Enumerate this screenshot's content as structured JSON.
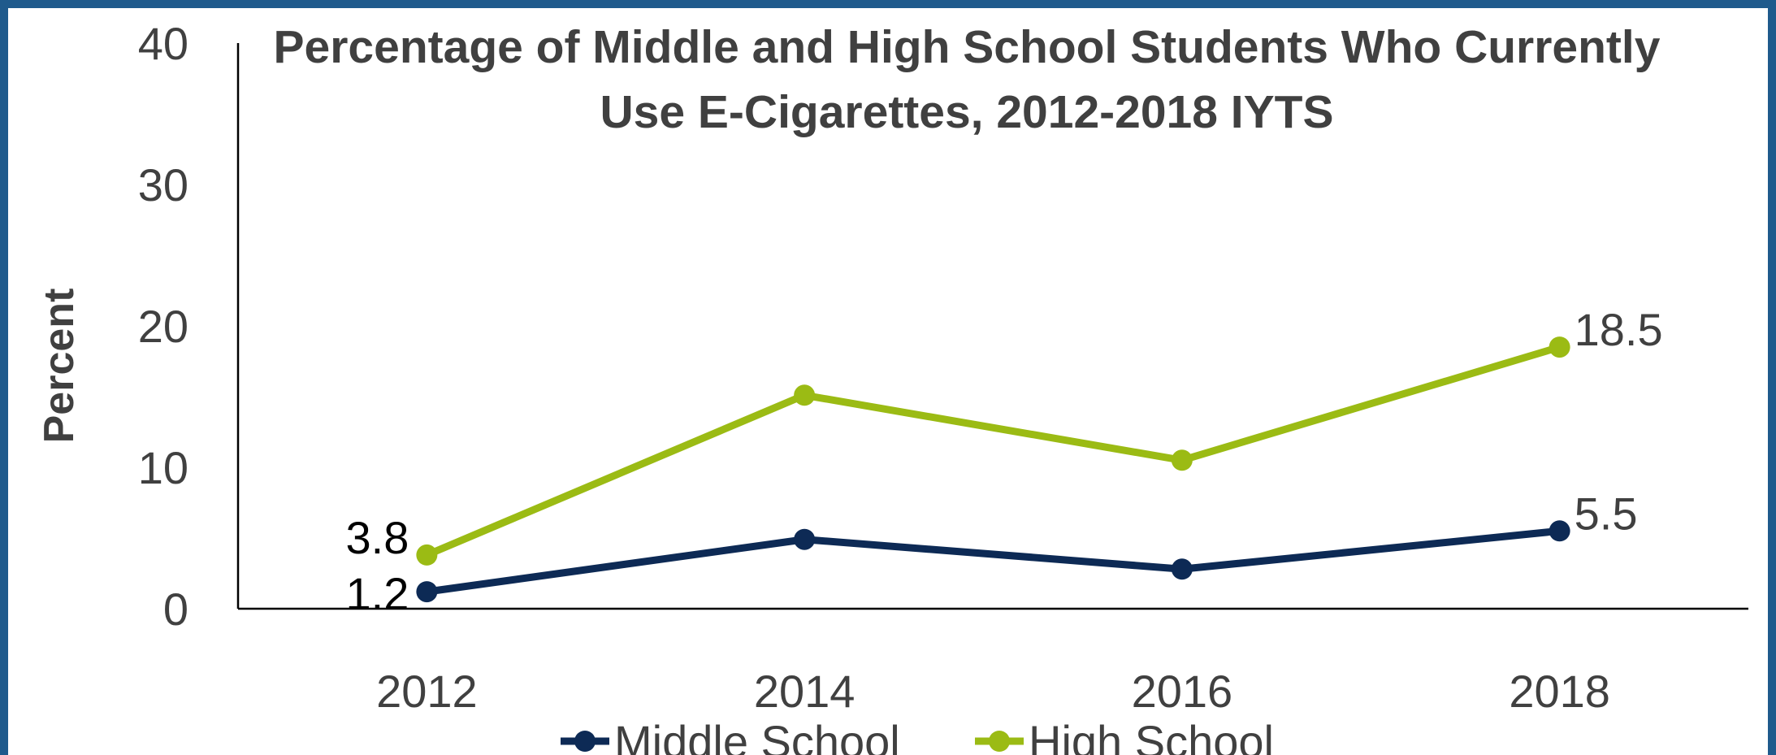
{
  "chart_data": {
    "type": "line",
    "title_lines": [
      "Percentage of Middle and High School Students Who Currently",
      "Use E-Cigarettes, 2012-2018 IYTS"
    ],
    "xlabel": "",
    "ylabel": "Percent",
    "categories": [
      "2012",
      "2014",
      "2016",
      "2018"
    ],
    "ylim": [
      0,
      40
    ],
    "yticks": [
      "0",
      "10",
      "20",
      "30",
      "40"
    ],
    "grid": false,
    "legend_position": "bottom",
    "series": [
      {
        "name": "Middle School",
        "color": "#0d2a55",
        "values": [
          1.2,
          4.9,
          2.8,
          5.5
        ],
        "labels": [
          "1.2",
          "",
          "",
          "5.5"
        ]
      },
      {
        "name": "High School",
        "color": "#9bbb14",
        "values": [
          3.8,
          15.1,
          10.5,
          18.5
        ],
        "labels": [
          "3.8",
          "",
          "",
          "18.5"
        ]
      }
    ]
  }
}
